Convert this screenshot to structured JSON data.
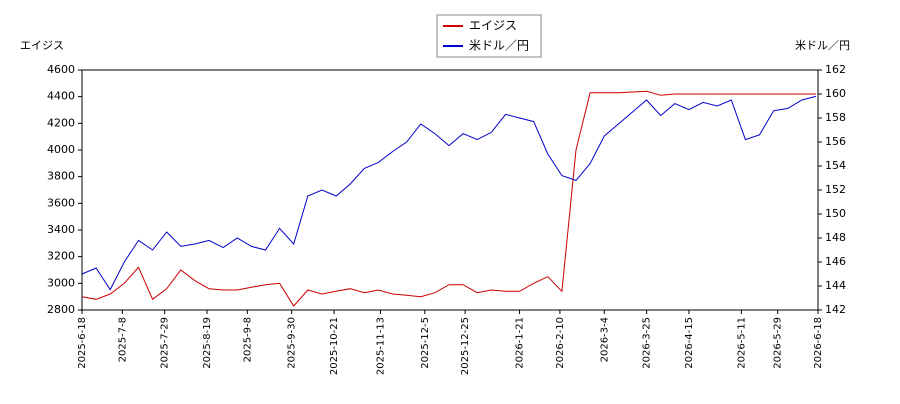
{
  "chart_data": {
    "type": "line",
    "y_label": "エイジス",
    "y2_label": "米ドル／円",
    "x": [
      "2025-6-18",
      "2025-6-25",
      "2025-7-2",
      "2025-7-9",
      "2025-7-16",
      "2025-7-23",
      "2025-7-30",
      "2025-8-6",
      "2025-8-13",
      "2025-8-20",
      "2025-8-27",
      "2025-9-3",
      "2025-9-10",
      "2025-9-17",
      "2025-9-24",
      "2025-10-1",
      "2025-10-8",
      "2025-10-15",
      "2025-10-22",
      "2025-10-29",
      "2025-11-5",
      "2025-11-12",
      "2025-11-19",
      "2025-11-26",
      "2025-12-3",
      "2025-12-10",
      "2025-12-17",
      "2025-12-24",
      "2025-12-31",
      "2026-1-7",
      "2026-1-14",
      "2026-1-21",
      "2026-1-28",
      "2026-2-4",
      "2026-2-11",
      "2026-2-18",
      "2026-2-25",
      "2026-3-4",
      "2026-3-11",
      "2026-3-18",
      "2026-3-25",
      "2026-4-1",
      "2026-4-8",
      "2026-4-15",
      "2026-4-22",
      "2026-4-29",
      "2026-5-6",
      "2026-5-13",
      "2026-5-20",
      "2026-5-27",
      "2026-6-3",
      "2026-6-10",
      "2026-6-17"
    ],
    "series": [
      {
        "name": "エイジス",
        "color": "#cc0000",
        "values": [
          2900,
          2880,
          2920,
          3000,
          3120,
          2880,
          2960,
          3100,
          3020,
          2960,
          2950,
          2950,
          2970,
          2990,
          3000,
          2830,
          2950,
          2920,
          2940,
          2960,
          2930,
          2950,
          2920,
          2910,
          2900,
          2930,
          2990,
          2990,
          2930,
          2950,
          2940,
          2940,
          3000,
          3050,
          2940,
          4000,
          4430,
          4430,
          4430,
          4435,
          4440,
          4410,
          4420,
          4420,
          4420,
          4420,
          4420,
          4420,
          4420,
          4420,
          4420,
          4420,
          4420
        ]
      },
      {
        "name": "米ドル／円",
        "color": "#0000cc",
        "axis": "y2",
        "values": [
          145.0,
          145.5,
          143.7,
          146.0,
          147.8,
          147.0,
          148.5,
          147.3,
          147.5,
          147.8,
          147.2,
          148.0,
          147.3,
          147.0,
          148.8,
          147.5,
          151.5,
          152.0,
          151.5,
          152.5,
          153.8,
          154.3,
          155.2,
          156.0,
          157.5,
          156.7,
          155.7,
          156.7,
          156.2,
          156.8,
          158.3,
          158.0,
          157.7,
          155.0,
          153.2,
          152.8,
          154.2,
          156.5,
          157.5,
          158.5,
          159.5,
          158.2,
          159.2,
          158.7,
          159.3,
          159.0,
          159.5,
          156.2,
          156.6,
          158.6,
          158.8,
          159.5,
          159.8
        ]
      }
    ],
    "xlim": [
      "2025-6-18",
      "2026-6-18"
    ],
    "xticks": [
      "2025-6-18",
      "2025-7-8",
      "2025-7-29",
      "2025-8-19",
      "2025-9-8",
      "2025-9-30",
      "2025-10-21",
      "2025-11-13",
      "2025-12-5",
      "2025-12-25",
      "2026-1-21",
      "2026-2-10",
      "2026-3-4",
      "2026-3-25",
      "2026-4-15",
      "2026-5-11",
      "2026-5-29",
      "2026-6-18"
    ],
    "ylim": [
      2800,
      4600
    ],
    "yticks": [
      2800,
      3000,
      3200,
      3400,
      3600,
      3800,
      4000,
      4200,
      4400,
      4600
    ],
    "y2lim": [
      142,
      162
    ],
    "y2ticks": [
      142,
      144,
      146,
      148,
      150,
      152,
      154,
      156,
      158,
      160,
      162
    ]
  }
}
